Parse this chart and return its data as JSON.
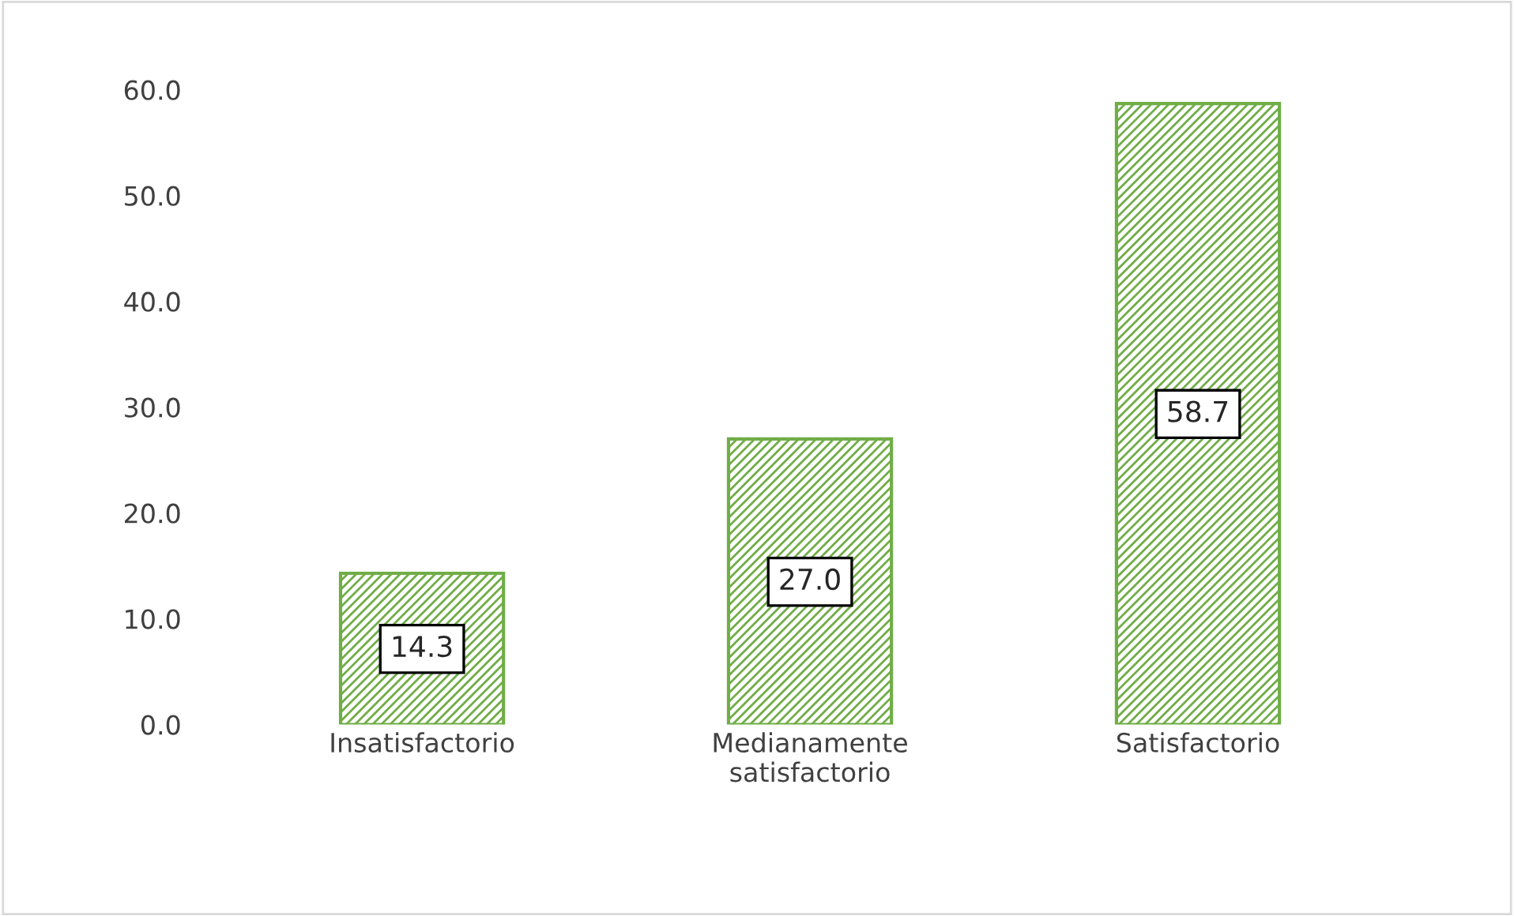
{
  "chart_data": {
    "type": "bar",
    "categories": [
      "Insatisfactorio",
      "Medianamente\nsatisfactorio",
      "Satisfactorio"
    ],
    "series": [
      {
        "color": "#70ad47",
        "values": [
          14.3,
          27.0,
          58.7
        ],
        "value_labels": [
          "14.3",
          "27.0",
          "58.7"
        ]
      }
    ],
    "ylim": [
      0,
      60
    ],
    "yticks": [
      {
        "value": 0,
        "label": "0.0"
      },
      {
        "value": 10,
        "label": "10.0"
      },
      {
        "value": 20,
        "label": "20.0"
      },
      {
        "value": 30,
        "label": "30.0"
      },
      {
        "value": 40,
        "label": "40.0"
      },
      {
        "value": 50,
        "label": "50.0"
      },
      {
        "value": 60,
        "label": "60.0"
      }
    ],
    "grid": false,
    "legend": false
  }
}
